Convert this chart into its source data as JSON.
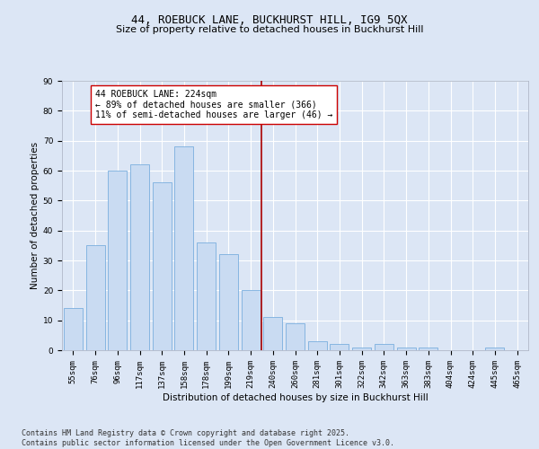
{
  "title1": "44, ROEBUCK LANE, BUCKHURST HILL, IG9 5QX",
  "title2": "Size of property relative to detached houses in Buckhurst Hill",
  "xlabel": "Distribution of detached houses by size in Buckhurst Hill",
  "ylabel": "Number of detached properties",
  "categories": [
    "55sqm",
    "76sqm",
    "96sqm",
    "117sqm",
    "137sqm",
    "158sqm",
    "178sqm",
    "199sqm",
    "219sqm",
    "240sqm",
    "260sqm",
    "281sqm",
    "301sqm",
    "322sqm",
    "342sqm",
    "363sqm",
    "383sqm",
    "404sqm",
    "424sqm",
    "445sqm",
    "465sqm"
  ],
  "values": [
    14,
    35,
    60,
    62,
    56,
    68,
    36,
    32,
    20,
    11,
    9,
    3,
    2,
    1,
    2,
    1,
    1,
    0,
    0,
    1,
    0
  ],
  "bar_color": "#c9dbf2",
  "bar_edge_color": "#7aaede",
  "vline_x_index": 8,
  "vline_color": "#aa0000",
  "annotation_text": "44 ROEBUCK LANE: 224sqm\n← 89% of detached houses are smaller (366)\n11% of semi-detached houses are larger (46) →",
  "annotation_box_color": "#ffffff",
  "annotation_box_edge": "#cc0000",
  "ylim": [
    0,
    90
  ],
  "yticks": [
    0,
    10,
    20,
    30,
    40,
    50,
    60,
    70,
    80,
    90
  ],
  "bg_color": "#dce6f5",
  "plot_bg_color": "#dce6f5",
  "grid_color": "#ffffff",
  "footer": "Contains HM Land Registry data © Crown copyright and database right 2025.\nContains public sector information licensed under the Open Government Licence v3.0.",
  "title_fontsize": 9,
  "subtitle_fontsize": 8,
  "axis_label_fontsize": 7.5,
  "tick_fontsize": 6.5,
  "annotation_fontsize": 7,
  "footer_fontsize": 6
}
